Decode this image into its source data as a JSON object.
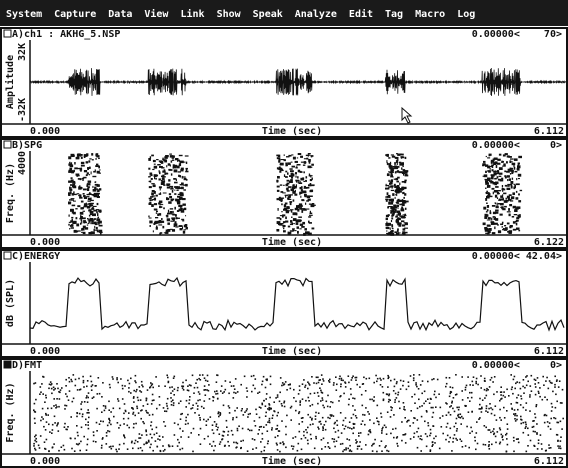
{
  "menu": {
    "items": [
      "System",
      "Capture",
      "Data",
      "View",
      "Link",
      "Show",
      "Speak",
      "Analyze",
      "Edit",
      "Tag",
      "Macro",
      "Log"
    ]
  },
  "panels": [
    {
      "label": "A)ch1 : AKHG_5.NSP",
      "readout": "0.00000<    70>",
      "y_label": "Amplitude",
      "y_top": "32K",
      "y_bottom": "-32K",
      "x_start": "0.000",
      "x_label": "Time (sec)",
      "x_end": "6.112"
    },
    {
      "label": "B)SPG",
      "readout": "0.00000<     0>",
      "y_label": "Freq. (Hz)",
      "y_top": "4000",
      "x_start": "0.000",
      "x_label": "Time (sec)",
      "x_end": "6.122"
    },
    {
      "label": "C)ENERGY",
      "readout": "0.00000< 42.04>",
      "y_label": "dB (SPL)",
      "x_start": "0.000",
      "x_label": "Time (sec)",
      "x_end": "6.112"
    },
    {
      "label": "D)FMT",
      "readout": "0.00000<     0>",
      "y_label": "Freq. (Hz)",
      "x_start": "0.000",
      "x_label": "Time (sec)",
      "x_end": "6.112"
    }
  ]
}
